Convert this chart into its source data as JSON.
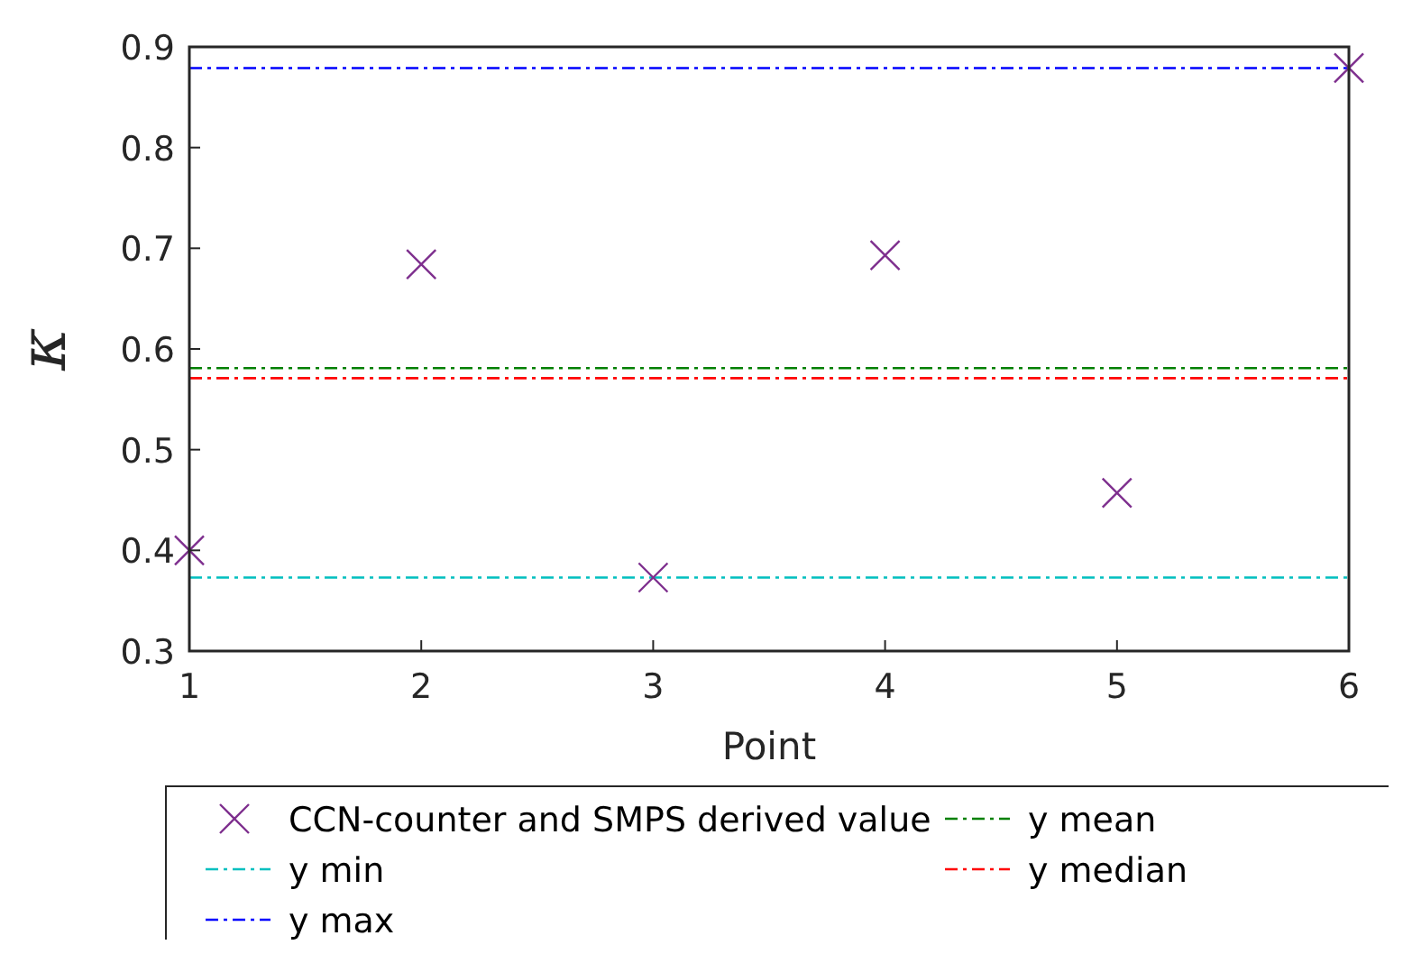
{
  "chart_data": {
    "type": "scatter",
    "xlabel": "Point",
    "ylabel": "κ",
    "x": [
      1,
      2,
      3,
      4,
      5,
      6
    ],
    "xlim": [
      1,
      6
    ],
    "xticks": [
      1,
      2,
      3,
      4,
      5,
      6
    ],
    "ylim": [
      0.3,
      0.9
    ],
    "yticks": [
      0.3,
      0.4,
      0.5,
      0.6,
      0.7,
      0.8,
      0.9
    ],
    "marker": "cross",
    "legend": "bottom",
    "grid": false,
    "series": [
      {
        "name": "CCN-counter and SMPS derived value",
        "color": "#7e2f8e",
        "values": [
          0.4,
          0.684,
          0.373,
          0.693,
          0.457,
          0.879
        ]
      }
    ],
    "ref_lines": [
      {
        "axis": "y",
        "value": 0.373,
        "label": "y min",
        "color": "#00bfbf",
        "line_style": "dashed"
      },
      {
        "axis": "y",
        "value": 0.879,
        "label": "y max",
        "color": "#0000ff",
        "line_style": "dashed"
      },
      {
        "axis": "y",
        "value": 0.581,
        "label": "y mean",
        "color": "#008000",
        "line_style": "dashed"
      },
      {
        "axis": "y",
        "value": 0.571,
        "label": "y median",
        "color": "#ff0000",
        "line_style": "dashed"
      }
    ]
  }
}
